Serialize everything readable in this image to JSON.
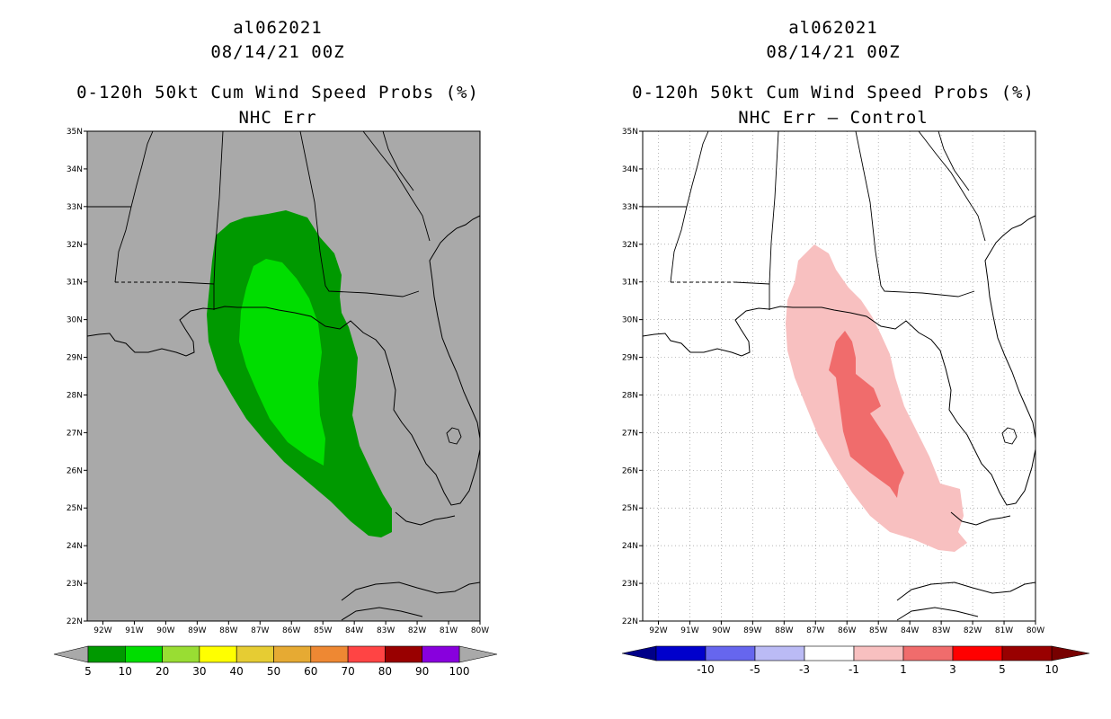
{
  "panels": [
    {
      "storm_id": "al062021",
      "datetime": "08/14/21 00Z",
      "title": "0-120h 50kt Cum Wind Speed Probs (%)",
      "subtitle": "NHC Err",
      "background_color": "#a9a9a9",
      "colorbar": {
        "colors": [
          "#009900",
          "#00dd00",
          "#99dd33",
          "#ffff00",
          "#e6cc33",
          "#e6aa33",
          "#ee8833",
          "#ff4444",
          "#990000",
          "#8800dd"
        ],
        "end_colors": [
          "#a9a9a9",
          "#a9a9a9"
        ],
        "labels": [
          "5",
          "10",
          "20",
          "30",
          "40",
          "50",
          "60",
          "70",
          "80",
          "90",
          "100"
        ]
      }
    },
    {
      "storm_id": "al062021",
      "datetime": "08/14/21 00Z",
      "title": "0-120h 50kt Cum Wind Speed Probs (%)",
      "subtitle": "NHC Err – Control",
      "background_color": "#ffffff",
      "colorbar": {
        "colors": [
          "#0000cc",
          "#6666ee",
          "#bbbbf5",
          "#ffffff",
          "#f8c0c0",
          "#f06c6c",
          "#ff0000",
          "#990000"
        ],
        "end_colors": [
          "#000088",
          "#770000"
        ],
        "labels": [
          "-10",
          "-5",
          "-3",
          "-1",
          "1",
          "3",
          "5",
          "10"
        ]
      }
    }
  ],
  "axes": {
    "lat_labels": [
      "35N",
      "34N",
      "33N",
      "32N",
      "31N",
      "30N",
      "29N",
      "28N",
      "27N",
      "26N",
      "25N",
      "24N",
      "23N",
      "22N"
    ],
    "lon_labels": [
      "92W",
      "91W",
      "90W",
      "89W",
      "88W",
      "87W",
      "86W",
      "85W",
      "84W",
      "83W",
      "82W",
      "81W",
      "80W"
    ]
  }
}
